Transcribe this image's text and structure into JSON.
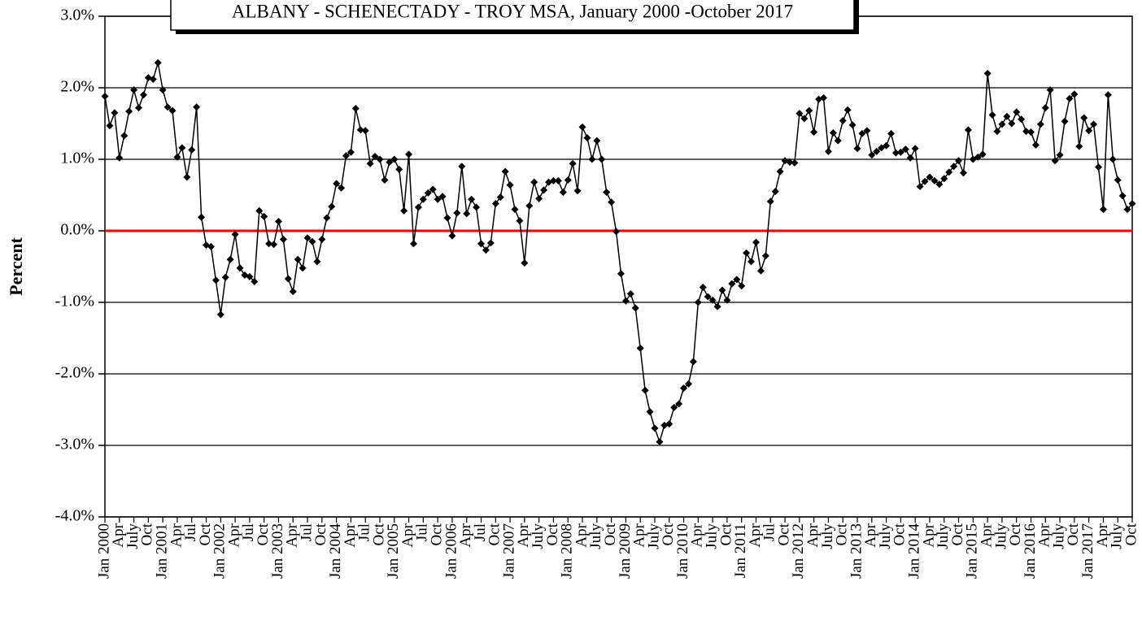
{
  "chart_data": {
    "type": "line",
    "title": "ALBANY - SCHENECTADY - TROY MSA, January 2000 -October 2017",
    "y_label": "Percent",
    "categories": [
      "Jan 2000",
      null,
      null,
      "Apr",
      null,
      null,
      "July",
      null,
      null,
      "Oct",
      null,
      null,
      "Jan 2001",
      null,
      null,
      "Apr",
      null,
      null,
      "Jul",
      null,
      null,
      "Oct",
      null,
      null,
      "Jan 2002",
      null,
      null,
      "Apr",
      null,
      null,
      "Jul",
      null,
      null,
      "Oct",
      null,
      null,
      "Jan 2003",
      null,
      null,
      "Apr",
      null,
      null,
      "Jul",
      null,
      null,
      "Oct",
      null,
      null,
      "Jan 2004",
      null,
      null,
      "Apr",
      null,
      null,
      "Jul",
      null,
      null,
      "Oct",
      null,
      null,
      "Jan 2005",
      null,
      null,
      "Apr",
      null,
      null,
      "Jul",
      null,
      null,
      "Oct",
      null,
      null,
      "Jan 2006",
      null,
      null,
      "Apr",
      null,
      null,
      "Jul",
      null,
      null,
      "Oct",
      null,
      null,
      "Jan 2007",
      null,
      null,
      "Apr",
      null,
      null,
      "July",
      null,
      null,
      "Oct",
      null,
      null,
      "Jan 2008",
      null,
      null,
      "Apr",
      null,
      null,
      "July",
      null,
      null,
      "Oct",
      null,
      null,
      "Jan 2009",
      null,
      null,
      "Apr",
      null,
      null,
      "July",
      null,
      null,
      "Oct",
      null,
      null,
      "Jan 2010",
      null,
      null,
      "Apr",
      null,
      null,
      "July",
      null,
      null,
      "Oct",
      null,
      null,
      "Jan 2011",
      null,
      null,
      "Apr",
      null,
      null,
      "Jul",
      null,
      null,
      "Oct",
      null,
      null,
      "Jan 2012",
      null,
      null,
      "Apr",
      null,
      null,
      "July",
      null,
      null,
      "Oct",
      null,
      null,
      "Jan 2013",
      null,
      null,
      "Apr",
      null,
      null,
      "July",
      null,
      null,
      "Oct",
      null,
      null,
      "Jan 2014",
      null,
      null,
      "Apr",
      null,
      null,
      "July",
      null,
      null,
      "Oct",
      null,
      null,
      "Jan 2015",
      null,
      null,
      "Apr",
      null,
      null,
      "July",
      null,
      null,
      "Oct",
      null,
      null,
      "Jan 2016",
      null,
      null,
      "Apr",
      null,
      null,
      "July",
      null,
      null,
      "Oct",
      null,
      null,
      "Jan 2017",
      null,
      null,
      "Apr",
      null,
      null,
      "July",
      null,
      null,
      "Oct"
    ],
    "series": [
      {
        "name": "Percent",
        "color": "#000000",
        "values": [
          1.88,
          1.47,
          1.65,
          1.02,
          1.33,
          1.67,
          1.97,
          1.72,
          1.9,
          2.14,
          2.12,
          2.35,
          1.97,
          1.73,
          1.68,
          1.03,
          1.16,
          0.75,
          1.13,
          1.73,
          0.19,
          -0.2,
          -0.22,
          -0.69,
          -1.17,
          -0.65,
          -0.4,
          -0.05,
          -0.52,
          -0.62,
          -0.64,
          -0.71,
          0.28,
          0.2,
          -0.18,
          -0.19,
          0.13,
          -0.12,
          -0.67,
          -0.85,
          -0.4,
          -0.52,
          -0.1,
          -0.15,
          -0.43,
          -0.12,
          0.18,
          0.34,
          0.66,
          0.6,
          1.05,
          1.1,
          1.71,
          1.41,
          1.4,
          0.94,
          1.04,
          1.0,
          0.71,
          0.96,
          1.0,
          0.86,
          0.28,
          1.07,
          -0.18,
          0.33,
          0.44,
          0.53,
          0.58,
          0.44,
          0.48,
          0.18,
          -0.07,
          0.25,
          0.9,
          0.24,
          0.44,
          0.33,
          -0.18,
          -0.27,
          -0.17,
          0.38,
          0.47,
          0.83,
          0.64,
          0.3,
          0.14,
          -0.45,
          0.35,
          0.68,
          0.45,
          0.57,
          0.68,
          0.7,
          0.7,
          0.54,
          0.71,
          0.94,
          0.56,
          1.45,
          1.3,
          1.0,
          1.26,
          1.0,
          0.54,
          0.4,
          -0.01,
          -0.6,
          -0.98,
          -0.88,
          -1.08,
          -1.64,
          -2.23,
          -2.53,
          -2.76,
          -2.95,
          -2.72,
          -2.7,
          -2.47,
          -2.42,
          -2.2,
          -2.14,
          -1.83,
          -1.0,
          -0.79,
          -0.92,
          -0.97,
          -1.06,
          -0.83,
          -0.97,
          -0.74,
          -0.68,
          -0.77,
          -0.31,
          -0.43,
          -0.16,
          -0.56,
          -0.35,
          0.41,
          0.55,
          0.83,
          0.98,
          0.96,
          0.95,
          1.64,
          1.57,
          1.68,
          1.38,
          1.84,
          1.86,
          1.11,
          1.37,
          1.26,
          1.54,
          1.69,
          1.48,
          1.15,
          1.36,
          1.4,
          1.06,
          1.11,
          1.16,
          1.19,
          1.36,
          1.09,
          1.1,
          1.14,
          1.02,
          1.15,
          0.62,
          0.69,
          0.75,
          0.7,
          0.65,
          0.73,
          0.82,
          0.9,
          0.98,
          0.81,
          1.41,
          1.0,
          1.03,
          1.07,
          2.2,
          1.62,
          1.39,
          1.49,
          1.6,
          1.5,
          1.66,
          1.56,
          1.39,
          1.38,
          1.2,
          1.49,
          1.72,
          1.97,
          0.98,
          1.06,
          1.53,
          1.85,
          1.91,
          1.18,
          1.58,
          1.4,
          1.49,
          0.89,
          0.3,
          1.9,
          1.0,
          0.71,
          0.49,
          0.3,
          0.38
        ]
      }
    ],
    "ylim": [
      -4,
      3
    ],
    "yticks": [
      {
        "value": -4,
        "label": "-4.0%"
      },
      {
        "value": -3,
        "label": "-3.0%"
      },
      {
        "value": -2,
        "label": "-2.0%"
      },
      {
        "value": -1,
        "label": "-1.0%"
      },
      {
        "value": 0,
        "label": "0.0%"
      },
      {
        "value": 1,
        "label": "1.0%"
      },
      {
        "value": 2,
        "label": "2.0%"
      },
      {
        "value": 3,
        "label": "3.0%"
      }
    ],
    "grid": true,
    "zero_line_color": "#ff0000"
  }
}
